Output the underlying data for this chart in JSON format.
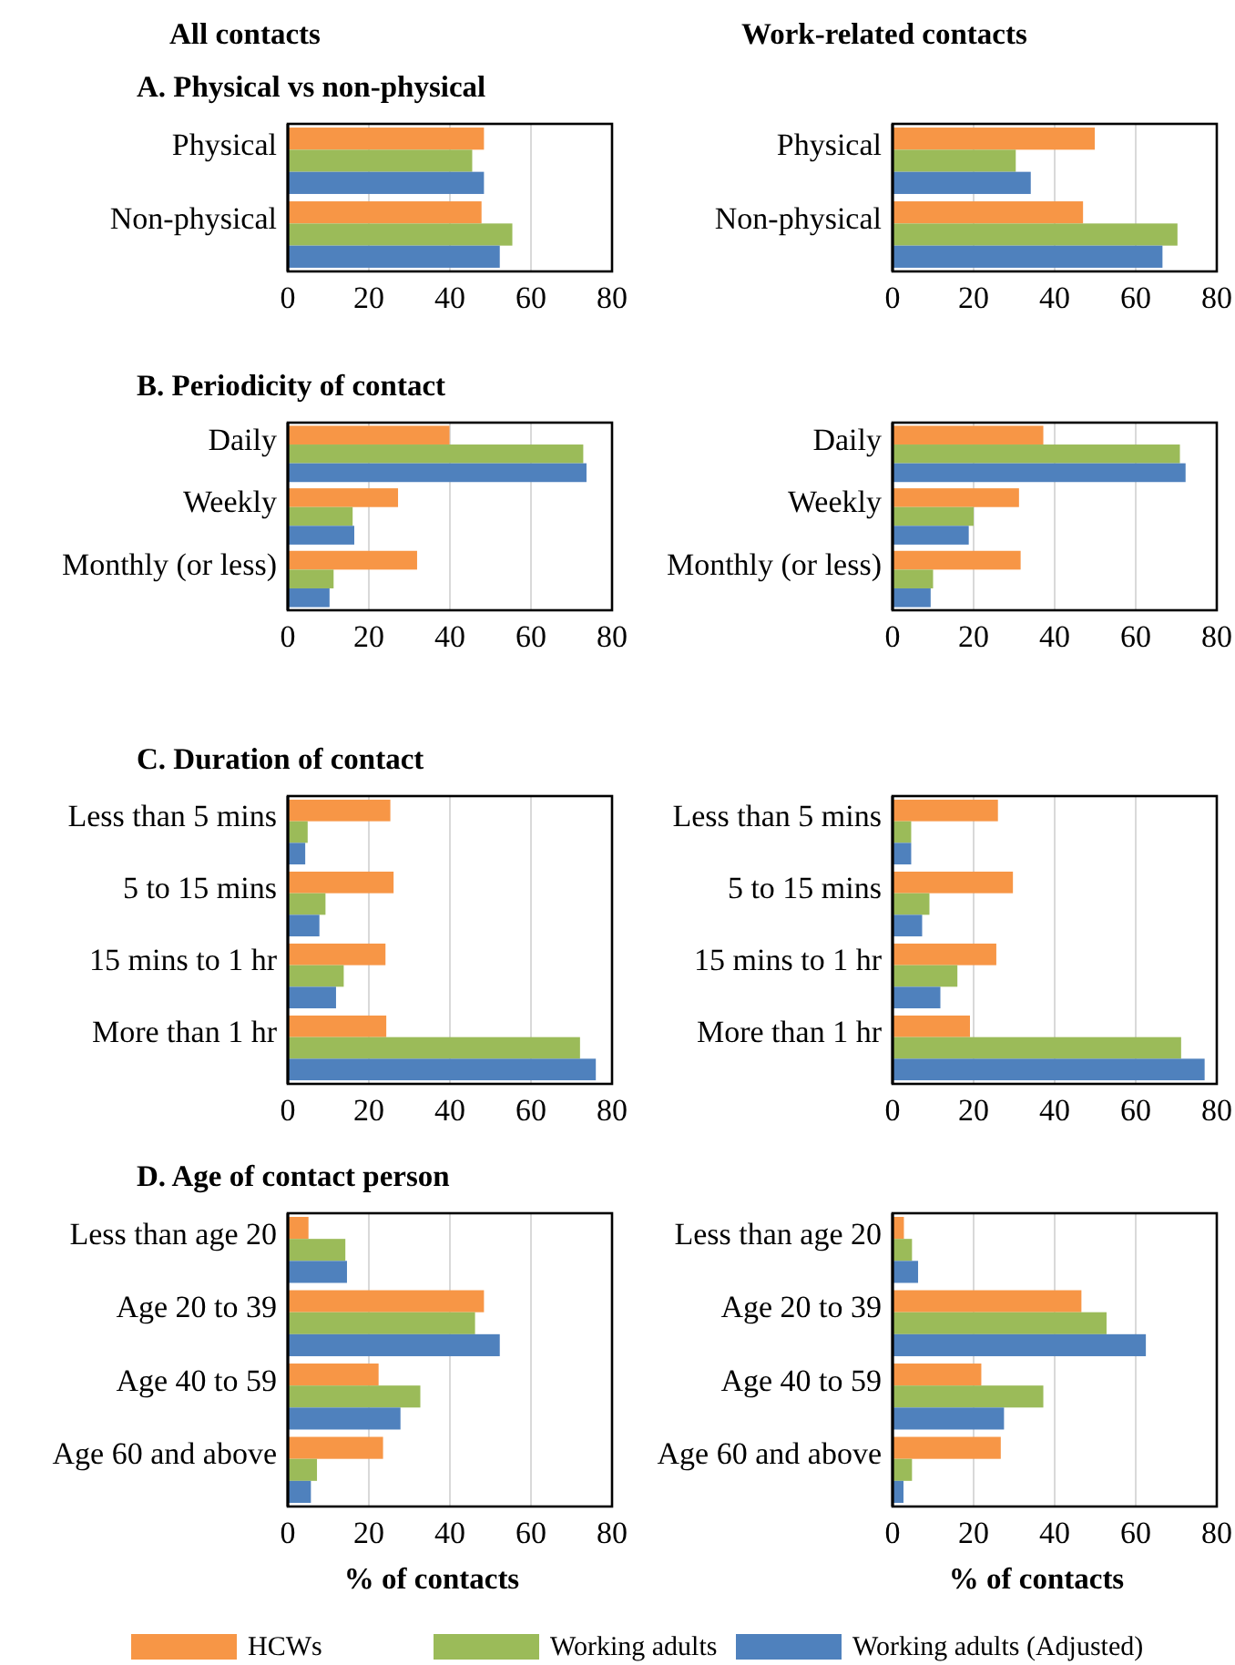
{
  "chart_data": [
    {
      "type": "bar",
      "orientation": "horizontal",
      "title": "All contacts",
      "subtitle": "A. Physical vs non-physical",
      "categories": [
        "Physical",
        "Non-physical"
      ],
      "xlim": [
        0,
        80
      ],
      "xticks": [
        0,
        20,
        40,
        60,
        80
      ],
      "grid": "x",
      "series": [
        {
          "color": "#f79646",
          "values": [
            48.4,
            47.8
          ]
        },
        {
          "color": "#9bbb59",
          "values": [
            45.5,
            55.4
          ]
        },
        {
          "color": "#4f81bd",
          "values": [
            48.4,
            52.3
          ]
        }
      ]
    },
    {
      "type": "bar",
      "orientation": "horizontal",
      "title": "Work-related contacts",
      "categories": [
        "Physical",
        "Non-physical"
      ],
      "xlim": [
        0,
        80
      ],
      "xticks": [
        0,
        20,
        40,
        60,
        80
      ],
      "grid": "x",
      "series": [
        {
          "color": "#f79646",
          "values": [
            49.9,
            47
          ]
        },
        {
          "color": "#9bbb59",
          "values": [
            30.4,
            70.3
          ]
        },
        {
          "color": "#4f81bd",
          "values": [
            34.1,
            66.6
          ]
        }
      ]
    },
    {
      "type": "bar",
      "orientation": "horizontal",
      "title": "B. Periodicity of contact",
      "categories": [
        "Daily",
        "Weekly",
        "Monthly (or less)"
      ],
      "xlim": [
        0,
        80
      ],
      "xticks": [
        0,
        20,
        40,
        60,
        80
      ],
      "grid": "x",
      "series": [
        {
          "color": "#f79646",
          "values": [
            39.9,
            27.2,
            31.9
          ]
        },
        {
          "color": "#9bbb59",
          "values": [
            72.9,
            16,
            11.3
          ]
        },
        {
          "color": "#4f81bd",
          "values": [
            73.7,
            16.4,
            10.3
          ]
        }
      ]
    },
    {
      "type": "bar",
      "orientation": "horizontal",
      "categories": [
        "Daily",
        "Weekly",
        "Monthly (or less)"
      ],
      "xlim": [
        0,
        80
      ],
      "xticks": [
        0,
        20,
        40,
        60,
        80
      ],
      "grid": "x",
      "series": [
        {
          "color": "#f79646",
          "values": [
            37.2,
            31.2,
            31.6
          ]
        },
        {
          "color": "#9bbb59",
          "values": [
            70.9,
            20,
            10
          ]
        },
        {
          "color": "#4f81bd",
          "values": [
            72.3,
            18.8,
            9.4
          ]
        }
      ]
    },
    {
      "type": "bar",
      "orientation": "horizontal",
      "title": "C. Duration of contact",
      "categories": [
        "Less than 5 mins",
        "5 to 15 mins",
        "15 mins to 1 hr",
        "More than 1 hr"
      ],
      "xlim": [
        0,
        80
      ],
      "xticks": [
        0,
        20,
        40,
        60,
        80
      ],
      "grid": "x",
      "series": [
        {
          "color": "#f79646",
          "values": [
            25.3,
            26.1,
            24.1,
            24.3
          ]
        },
        {
          "color": "#9bbb59",
          "values": [
            4.9,
            9.3,
            13.8,
            72.1
          ]
        },
        {
          "color": "#4f81bd",
          "values": [
            4.3,
            7.8,
            11.9,
            76
          ]
        }
      ]
    },
    {
      "type": "bar",
      "orientation": "horizontal",
      "categories": [
        "Less than 5 mins",
        "5 to 15 mins",
        "15 mins to 1 hr",
        "More than 1 hr"
      ],
      "xlim": [
        0,
        80
      ],
      "xticks": [
        0,
        20,
        40,
        60,
        80
      ],
      "grid": "x",
      "series": [
        {
          "color": "#f79646",
          "values": [
            26,
            29.7,
            25.6,
            19.1
          ]
        },
        {
          "color": "#9bbb59",
          "values": [
            4.6,
            9.1,
            16,
            71.2
          ]
        },
        {
          "color": "#4f81bd",
          "values": [
            4.6,
            7.3,
            11.8,
            77
          ]
        }
      ]
    },
    {
      "type": "bar",
      "orientation": "horizontal",
      "title": "D. Age of contact person",
      "xlabel": "% of contacts",
      "categories": [
        "Less than age 20",
        "Age 20 to 39",
        "Age 40 to 59",
        "Age 60 and above"
      ],
      "xlim": [
        0,
        80
      ],
      "xticks": [
        0,
        20,
        40,
        60,
        80
      ],
      "grid": "x",
      "series": [
        {
          "color": "#f79646",
          "values": [
            5.1,
            48.4,
            22.4,
            23.5
          ]
        },
        {
          "color": "#9bbb59",
          "values": [
            14.2,
            46.2,
            32.7,
            7.2
          ]
        },
        {
          "color": "#4f81bd",
          "values": [
            14.6,
            52.3,
            27.8,
            5.7
          ]
        }
      ]
    },
    {
      "type": "bar",
      "orientation": "horizontal",
      "xlabel": "% of contacts",
      "categories": [
        "Less than age 20",
        "Age 20 to 39",
        "Age 40 to 59",
        "Age 60 and above"
      ],
      "xlim": [
        0,
        80
      ],
      "xticks": [
        0,
        20,
        40,
        60,
        80
      ],
      "grid": "x",
      "legend": "bottom",
      "series": [
        {
          "name": "HCWs",
          "color": "#f79646",
          "values": [
            2.8,
            46.6,
            21.9,
            26.7
          ]
        },
        {
          "name": "Working adults",
          "color": "#9bbb59",
          "values": [
            4.8,
            52.8,
            37.2,
            4.8
          ]
        },
        {
          "name": "Working adults (Adjusted)",
          "color": "#4f81bd",
          "values": [
            6.3,
            62.5,
            27.5,
            2.7
          ]
        }
      ]
    }
  ]
}
